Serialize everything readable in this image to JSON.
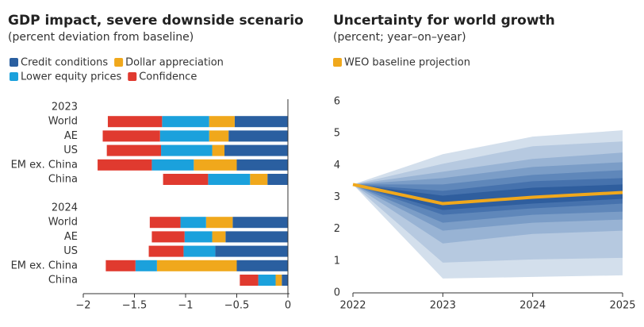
{
  "chart_data": [
    {
      "type": "bar",
      "orientation": "horizontal",
      "stacked": true,
      "title": "GDP impact, severe downside scenario",
      "subtitle": "(percent deviation from baseline)",
      "group_labels": [
        "2023",
        "2024"
      ],
      "categories": [
        "World",
        "AE",
        "US",
        "EM ex. China",
        "China",
        "World",
        "AE",
        "US",
        "EM ex. China",
        "China"
      ],
      "series": [
        {
          "name": "Credit conditions",
          "color": "#2a5fa0",
          "values": [
            -0.52,
            -0.58,
            -0.62,
            -0.5,
            -0.2,
            -0.54,
            -0.61,
            -0.71,
            -0.5,
            -0.06
          ]
        },
        {
          "name": "Dollar appreciation",
          "color": "#f0a81c",
          "values": [
            -0.25,
            -0.19,
            -0.12,
            -0.42,
            -0.17,
            -0.26,
            -0.13,
            0,
            -0.78,
            -0.06
          ]
        },
        {
          "name": "Lower equity prices",
          "color": "#1ba1dc",
          "values": [
            -0.46,
            -0.48,
            -0.5,
            -0.41,
            -0.41,
            -0.25,
            -0.27,
            -0.31,
            -0.21,
            -0.17
          ]
        },
        {
          "name": "Confidence",
          "color": "#e03a2f",
          "values": [
            -0.53,
            -0.56,
            -0.53,
            -0.53,
            -0.44,
            -0.3,
            -0.32,
            -0.34,
            -0.29,
            -0.18
          ]
        }
      ],
      "xlim": [
        -2,
        0
      ],
      "xticks": [
        {
          "value": -2,
          "label": "−2"
        },
        {
          "value": -1.5,
          "label": "−1.5"
        },
        {
          "value": -1,
          "label": "−1"
        },
        {
          "value": -0.5,
          "label": "−0.5"
        },
        0
      ]
    },
    {
      "type": "fan",
      "title": "Uncertainty for world growth",
      "subtitle": "(percent; year–on–year)",
      "x": [
        2022,
        2023,
        2024,
        2025
      ],
      "series": [
        {
          "name": "WEO baseline projection",
          "color": "#f0a81c",
          "values": [
            3.4,
            2.8,
            3.0,
            3.15
          ]
        }
      ],
      "bands": [
        {
          "color": "#d3dfec",
          "lower": [
            3.4,
            0.45,
            0.5,
            0.55
          ],
          "upper": [
            3.4,
            4.35,
            4.9,
            5.1
          ]
        },
        {
          "color": "#b6c9e0",
          "lower": [
            3.4,
            0.95,
            1.05,
            1.1
          ],
          "upper": [
            3.4,
            4.05,
            4.6,
            4.75
          ]
        },
        {
          "color": "#98b3d4",
          "lower": [
            3.4,
            1.55,
            1.85,
            1.95
          ],
          "upper": [
            3.4,
            3.8,
            4.2,
            4.4
          ]
        },
        {
          "color": "#7b9dc7",
          "lower": [
            3.4,
            1.95,
            2.2,
            2.3
          ],
          "upper": [
            3.4,
            3.6,
            3.95,
            4.1
          ]
        },
        {
          "color": "#5f87ba",
          "lower": [
            3.4,
            2.2,
            2.45,
            2.55
          ],
          "upper": [
            3.4,
            3.4,
            3.7,
            3.85
          ]
        },
        {
          "color": "#4672ad",
          "lower": [
            3.4,
            2.45,
            2.65,
            2.8
          ],
          "upper": [
            3.4,
            3.2,
            3.5,
            3.6
          ]
        },
        {
          "color": "#2f5e9e",
          "lower": [
            3.4,
            2.6,
            2.8,
            2.95
          ],
          "upper": [
            3.4,
            3.05,
            3.3,
            3.4
          ]
        }
      ],
      "xlim": [
        2022,
        2025
      ],
      "xticks": [
        2022,
        2023,
        2024,
        2025
      ],
      "ylim": [
        0,
        6
      ],
      "yticks": [
        0,
        1,
        2,
        3,
        4,
        5,
        6
      ]
    }
  ]
}
